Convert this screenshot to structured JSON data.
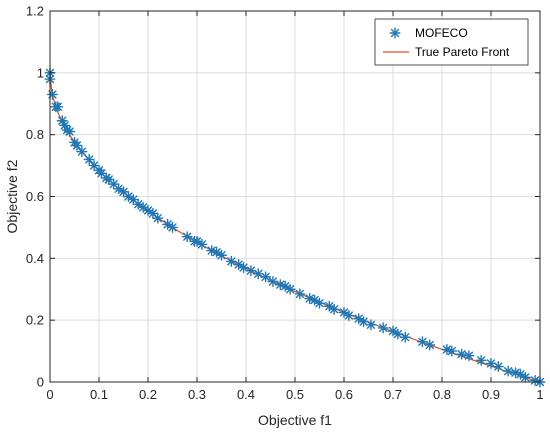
{
  "chart_data": {
    "type": "scatter",
    "xlabel": "Objective f1",
    "ylabel": "Objective f2",
    "xlim": [
      0,
      1
    ],
    "ylim": [
      0,
      1.2
    ],
    "xticks": [
      0,
      0.1,
      0.2,
      0.3,
      0.4,
      0.5,
      0.6,
      0.7,
      0.8,
      0.9,
      1
    ],
    "yticks": [
      0,
      0.2,
      0.4,
      0.6,
      0.8,
      1,
      1.2
    ],
    "xtick_labels": [
      "0",
      "0.1",
      "0.2",
      "0.3",
      "0.4",
      "0.5",
      "0.6",
      "0.7",
      "0.8",
      "0.9",
      "1"
    ],
    "ytick_labels": [
      "0",
      "0.2",
      "0.4",
      "0.6",
      "0.8",
      "1",
      "1.2"
    ],
    "grid": true,
    "legend_position": "top-right",
    "series": [
      {
        "name": "MOFECO",
        "marker": "asterisk",
        "color": "#1f77b4",
        "points": [
          [
            0.0,
            1.0
          ],
          [
            0.0,
            0.98
          ],
          [
            0.005,
            0.93
          ],
          [
            0.012,
            0.89
          ],
          [
            0.016,
            0.89
          ],
          [
            0.025,
            0.845
          ],
          [
            0.03,
            0.83
          ],
          [
            0.035,
            0.815
          ],
          [
            0.04,
            0.81
          ],
          [
            0.05,
            0.775
          ],
          [
            0.055,
            0.765
          ],
          [
            0.065,
            0.745
          ],
          [
            0.08,
            0.72
          ],
          [
            0.09,
            0.7
          ],
          [
            0.1,
            0.685
          ],
          [
            0.105,
            0.675
          ],
          [
            0.115,
            0.66
          ],
          [
            0.12,
            0.655
          ],
          [
            0.13,
            0.64
          ],
          [
            0.14,
            0.625
          ],
          [
            0.15,
            0.615
          ],
          [
            0.16,
            0.6
          ],
          [
            0.17,
            0.59
          ],
          [
            0.18,
            0.575
          ],
          [
            0.19,
            0.565
          ],
          [
            0.2,
            0.555
          ],
          [
            0.21,
            0.545
          ],
          [
            0.22,
            0.53
          ],
          [
            0.24,
            0.51
          ],
          [
            0.25,
            0.5
          ],
          [
            0.28,
            0.47
          ],
          [
            0.295,
            0.455
          ],
          [
            0.3,
            0.455
          ],
          [
            0.31,
            0.445
          ],
          [
            0.33,
            0.425
          ],
          [
            0.34,
            0.42
          ],
          [
            0.35,
            0.41
          ],
          [
            0.37,
            0.39
          ],
          [
            0.385,
            0.38
          ],
          [
            0.395,
            0.37
          ],
          [
            0.41,
            0.36
          ],
          [
            0.425,
            0.35
          ],
          [
            0.44,
            0.34
          ],
          [
            0.455,
            0.325
          ],
          [
            0.47,
            0.315
          ],
          [
            0.48,
            0.31
          ],
          [
            0.49,
            0.3
          ],
          [
            0.51,
            0.285
          ],
          [
            0.53,
            0.27
          ],
          [
            0.54,
            0.265
          ],
          [
            0.55,
            0.255
          ],
          [
            0.57,
            0.245
          ],
          [
            0.58,
            0.235
          ],
          [
            0.6,
            0.225
          ],
          [
            0.61,
            0.215
          ],
          [
            0.63,
            0.205
          ],
          [
            0.64,
            0.195
          ],
          [
            0.655,
            0.185
          ],
          [
            0.68,
            0.175
          ],
          [
            0.7,
            0.165
          ],
          [
            0.71,
            0.155
          ],
          [
            0.725,
            0.145
          ],
          [
            0.76,
            0.13
          ],
          [
            0.775,
            0.12
          ],
          [
            0.81,
            0.105
          ],
          [
            0.82,
            0.1
          ],
          [
            0.84,
            0.09
          ],
          [
            0.855,
            0.085
          ],
          [
            0.88,
            0.07
          ],
          [
            0.9,
            0.06
          ],
          [
            0.915,
            0.05
          ],
          [
            0.935,
            0.035
          ],
          [
            0.95,
            0.03
          ],
          [
            0.96,
            0.025
          ],
          [
            0.97,
            0.015
          ],
          [
            0.99,
            0.005
          ],
          [
            1.0,
            0.0
          ]
        ]
      },
      {
        "name": "True Pareto Front",
        "line": true,
        "color": "#d9541a",
        "function": "1 - sqrt(x)"
      }
    ]
  }
}
